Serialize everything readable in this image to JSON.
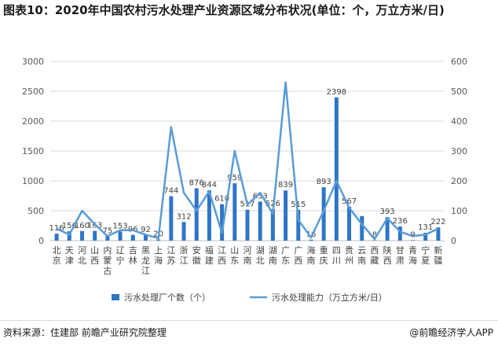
{
  "title": "图表10：2020年中国农村污水处理产业资源区域分布状况(单位：个，万立方米/日)",
  "source": "资料来源：住建部 前瞻产业研究院整理",
  "brand": "@前瞻经济学人APP",
  "colors": {
    "bar": "#2e75c8",
    "line": "#5b9bd5",
    "grid": "#d9d9d9",
    "axis": "#bfbfbf"
  },
  "chart_data": {
    "type": "bar",
    "categories": [
      "北京",
      "天津",
      "河北",
      "山西",
      "内蒙古",
      "辽宁",
      "吉林",
      "黑龙江",
      "上海",
      "江苏",
      "浙江",
      "安徽",
      "福建",
      "江西",
      "山东",
      "河南",
      "湖北",
      "湖南",
      "广东",
      "广西",
      "海南",
      "重庆",
      "四川",
      "贵州",
      "云南",
      "西藏",
      "陕西",
      "甘肃",
      "青海",
      "宁夏",
      "新疆"
    ],
    "y_left": {
      "min": 0,
      "max": 3000,
      "ticks": [
        0,
        500,
        1000,
        1500,
        2000,
        2500,
        3000
      ]
    },
    "y_right": {
      "min": 0,
      "max": 600,
      "ticks": [
        0,
        100,
        200,
        300,
        400,
        500,
        600
      ]
    },
    "grid": true,
    "legend_position": "bottom",
    "series": [
      {
        "name": "污水处理厂个数（个）",
        "type": "bar",
        "axis": "left",
        "values": [
          116,
          156,
          160,
          163,
          75,
          153,
          96,
          92,
          20,
          744,
          312,
          876,
          844,
          610,
          959,
          517,
          653,
          526,
          839,
          515,
          16,
          893,
          2398,
          567,
          411,
          8,
          393,
          236,
          9,
          131,
          222
        ],
        "labels": [
          "116",
          "156",
          "160",
          "163",
          "75",
          "153",
          "96",
          "92",
          "20",
          "744",
          "312",
          "876",
          "844",
          "610",
          "959",
          "517",
          "653",
          "526",
          "839",
          "515",
          "16",
          "893",
          "2398",
          "567",
          "",
          "8",
          "393",
          "236",
          "9",
          "131",
          "222"
        ]
      },
      {
        "name": "污水处理能力（万立方米/日）",
        "type": "line",
        "axis": "right",
        "values": [
          40,
          20,
          100,
          55,
          15,
          35,
          35,
          20,
          8,
          380,
          160,
          100,
          165,
          25,
          300,
          120,
          160,
          90,
          530,
          70,
          10,
          100,
          200,
          110,
          55,
          5,
          75,
          30,
          15,
          20,
          40
        ]
      }
    ]
  }
}
